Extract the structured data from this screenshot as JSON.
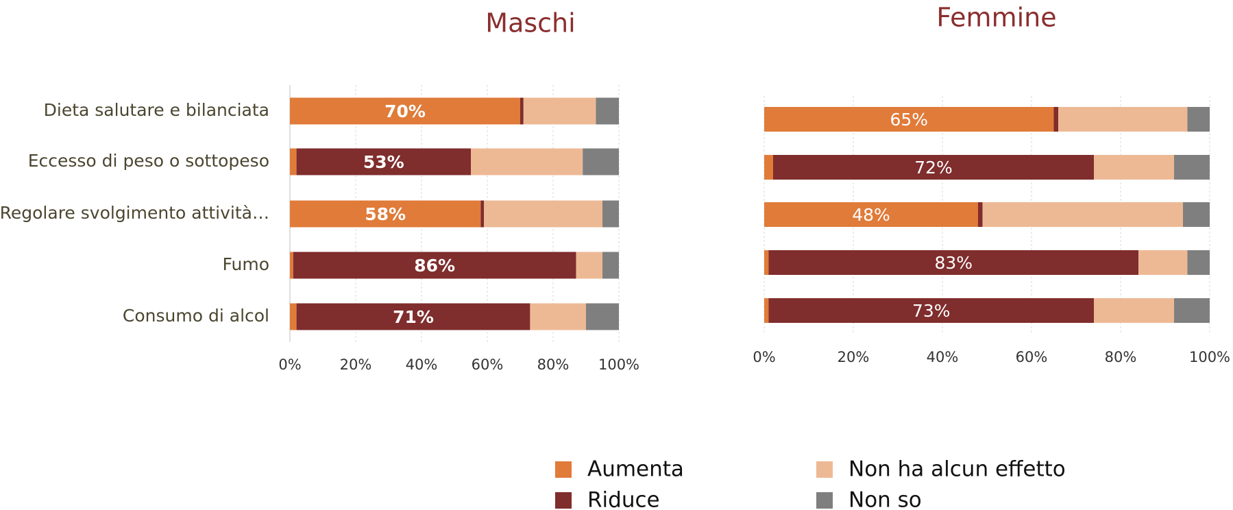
{
  "chart_data": [
    {
      "type": "stacked-bar-horizontal",
      "title": "Maschi",
      "categories": [
        "Dieta salutare e bilanciata",
        "Eccesso di peso o sottopeso",
        "Regolare svolgimento attività…",
        "Fumo",
        "Consumo di alcol"
      ],
      "series": [
        {
          "name": "Aumenta",
          "color": "#E07B39",
          "values": [
            70,
            2,
            58,
            1,
            2
          ],
          "value_labels": [
            "70%",
            null,
            "58%",
            null,
            null
          ]
        },
        {
          "name": "Riduce",
          "color": "#7F2D2D",
          "values": [
            1,
            53,
            1,
            86,
            71
          ],
          "value_labels": [
            null,
            "53%",
            null,
            "86%",
            "71%"
          ]
        },
        {
          "name": "Non ha alcun effetto",
          "color": "#EDB995",
          "values": [
            22,
            34,
            36,
            8,
            17
          ]
        },
        {
          "name": "Non so",
          "color": "#7F7F7F",
          "values": [
            7,
            11,
            5,
            5,
            10
          ]
        }
      ],
      "xlim": [
        0,
        100
      ],
      "xticks": [
        {
          "value": 0,
          "label": "0%"
        },
        {
          "value": 20,
          "label": "20%"
        },
        {
          "value": 40,
          "label": "40%"
        },
        {
          "value": 60,
          "label": "60%"
        },
        {
          "value": 80,
          "label": "80%"
        },
        {
          "value": 100,
          "label": "100%"
        }
      ],
      "grid": true
    },
    {
      "type": "stacked-bar-horizontal",
      "title": "Femmine",
      "categories": [
        null,
        null,
        null,
        null,
        null
      ],
      "series": [
        {
          "color": "#E07B39",
          "values": [
            65,
            2,
            48,
            1,
            1
          ],
          "value_labels": [
            "65%",
            null,
            "48%",
            null,
            null
          ]
        },
        {
          "color": "#7F2D2D",
          "values": [
            1,
            72,
            1,
            83,
            73
          ],
          "value_labels": [
            null,
            "72%",
            null,
            "83%",
            "73%"
          ]
        },
        {
          "color": "#EDB995",
          "values": [
            29,
            18,
            45,
            11,
            18
          ]
        },
        {
          "color": "#7F7F7F",
          "values": [
            5,
            8,
            6,
            5,
            8
          ]
        }
      ],
      "xlim": [
        0,
        100
      ],
      "xticks": [
        {
          "value": 0,
          "label": "0%"
        },
        {
          "value": 20,
          "label": "20%"
        },
        {
          "value": 40,
          "label": "40%"
        },
        {
          "value": 60,
          "label": "60%"
        },
        {
          "value": 80,
          "label": "80%"
        },
        {
          "value": 100,
          "label": "100%"
        }
      ],
      "grid": true
    }
  ]
}
